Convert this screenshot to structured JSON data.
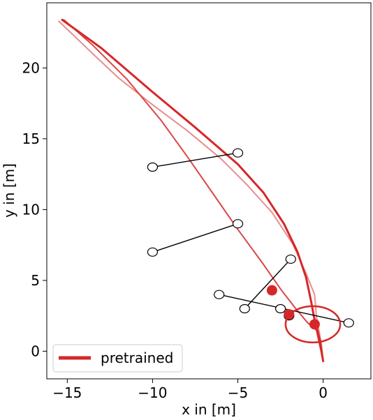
{
  "chart_data": {
    "type": "line",
    "xlabel": "x in [m]",
    "ylabel": "y in [m]",
    "xlim": [
      -16.2,
      2.8
    ],
    "ylim": [
      -1.95,
      24.6
    ],
    "x_ticks": [
      -15,
      -10,
      -5,
      0
    ],
    "x_tick_labels": [
      "−15",
      "−10",
      "−5",
      "0"
    ],
    "y_ticks": [
      0,
      5,
      10,
      15,
      20
    ],
    "y_tick_labels": [
      "0",
      "5",
      "10",
      "15",
      "20"
    ],
    "grid": false,
    "legend": {
      "position": "bottom-left",
      "entries": [
        {
          "label": "pretrained",
          "color": "#d62728"
        }
      ]
    },
    "colors": {
      "main": "#d62728",
      "light": "#e88e8e",
      "mid": "#dc4646",
      "marker": "#000000"
    },
    "series": [
      {
        "name": "pretrained",
        "style": "main",
        "points": [
          [
            -15.3,
            23.4
          ],
          [
            -13.0,
            21.4
          ],
          [
            -10.0,
            18.3
          ],
          [
            -7.5,
            15.8
          ],
          [
            -5.0,
            13.2
          ],
          [
            -3.5,
            11.2
          ],
          [
            -2.3,
            9.0
          ],
          [
            -1.5,
            7.0
          ],
          [
            -1.0,
            5.2
          ],
          [
            -0.7,
            3.5
          ],
          [
            -0.55,
            2.5
          ],
          [
            -0.2,
            0.8
          ],
          [
            0.0,
            -0.7
          ]
        ]
      },
      {
        "style": "light",
        "points": [
          [
            -15.5,
            23.3
          ],
          [
            -13.5,
            21.0
          ],
          [
            -12.0,
            19.3
          ],
          [
            -10.0,
            17.4
          ],
          [
            -8.0,
            15.6
          ],
          [
            -6.0,
            13.6
          ],
          [
            -4.5,
            11.8
          ],
          [
            -3.0,
            9.8
          ],
          [
            -1.8,
            7.6
          ],
          [
            -1.0,
            5.5
          ],
          [
            -0.5,
            4.0
          ],
          [
            -0.4,
            2.5
          ],
          [
            -0.1,
            0.5
          ],
          [
            0.0,
            -0.7
          ]
        ]
      },
      {
        "style": "mid",
        "points": [
          [
            -15.2,
            23.4
          ],
          [
            -13.5,
            21.6
          ],
          [
            -11.5,
            19.2
          ],
          [
            -9.5,
            16.3
          ],
          [
            -8.0,
            13.8
          ],
          [
            -6.5,
            11.2
          ],
          [
            -5.0,
            8.6
          ],
          [
            -3.6,
            6.3
          ],
          [
            -2.5,
            4.4
          ],
          [
            -1.6,
            3.0
          ],
          [
            -0.9,
            2.0
          ],
          [
            -0.4,
            1.5
          ],
          [
            0.0,
            -0.7
          ]
        ]
      }
    ],
    "obstacles": [
      {
        "start": [
          -10.0,
          13.0
        ],
        "end": [
          -5.0,
          14.0
        ]
      },
      {
        "start": [
          -10.0,
          7.0
        ],
        "end": [
          -5.0,
          9.0
        ]
      },
      {
        "start": [
          -6.1,
          4.0
        ],
        "end": [
          1.5,
          2.0
        ]
      },
      {
        "start": [
          -4.6,
          3.0
        ],
        "end": [
          -1.9,
          6.5
        ]
      },
      {
        "start": [
          -2.5,
          3.0
        ],
        "end": [
          -2.0,
          2.5
        ]
      }
    ],
    "robot_positions": [
      [
        -3.0,
        4.3
      ],
      [
        -2.0,
        2.6
      ],
      [
        -0.5,
        1.9
      ]
    ],
    "robot_circle": {
      "center": [
        -0.6,
        1.9
      ],
      "radius": 1.6
    }
  }
}
